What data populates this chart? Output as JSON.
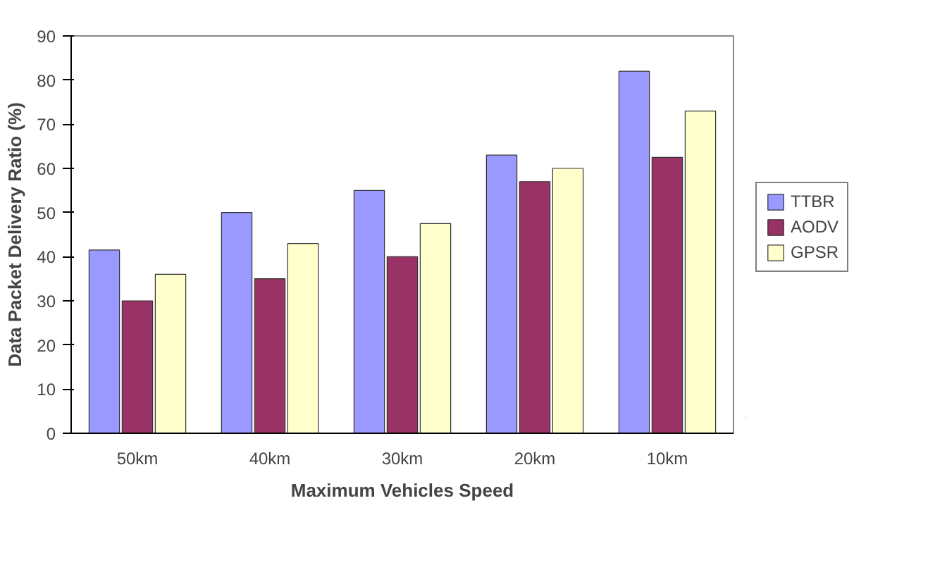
{
  "chart_data": {
    "type": "bar",
    "xlabel": "Maximum Vehicles Speed",
    "ylabel": "Data Packet Delivery Ratio (%)",
    "categories": [
      "50km",
      "40km",
      "30km",
      "20km",
      "10km"
    ],
    "series": [
      {
        "name": "TTBR",
        "color": "#9999ff",
        "values": [
          41.5,
          50,
          55,
          63,
          82
        ]
      },
      {
        "name": "AODV",
        "color": "#993366",
        "values": [
          30,
          35,
          40,
          57,
          62.5
        ]
      },
      {
        "name": "GPSR",
        "color": "#ffffcc",
        "values": [
          36,
          43,
          47.5,
          60,
          73
        ]
      }
    ],
    "ylim": [
      0,
      90
    ],
    "yticks": [
      0,
      10,
      20,
      30,
      40,
      50,
      60,
      70,
      80,
      90
    ],
    "grid": false,
    "legend": "right"
  }
}
